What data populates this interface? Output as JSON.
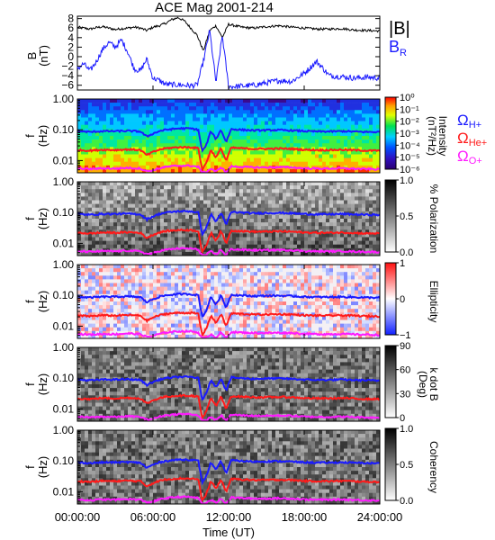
{
  "title": "ACE Mag 2001-214",
  "xlabel": "Time (UT)",
  "x_ticks": [
    "00:00:00",
    "06:00:00",
    "12:00:00",
    "18:00:00",
    "24:00:00"
  ],
  "colors": {
    "blue": "#1a1aff",
    "red": "#ff1a1a",
    "magenta": "#ff1aff",
    "black": "#000000"
  },
  "chart_data": [
    {
      "type": "line",
      "panel": "B",
      "ylabel": "B",
      "yunit": "(nT)",
      "ylim": [
        -7,
        8.5
      ],
      "y_ticks": [
        "8",
        "6",
        "4",
        "2",
        "0",
        "−2",
        "−4",
        "−6"
      ],
      "x_unit": "hours UT",
      "xlim": [
        0,
        24
      ],
      "series": [
        {
          "name": "|B|",
          "color": "#000000",
          "x": [
            0,
            0.5,
            1,
            1.5,
            2,
            2.5,
            3,
            3.5,
            4,
            4.5,
            5,
            5.5,
            6,
            6.5,
            7,
            7.5,
            8,
            8.5,
            9,
            9.5,
            10,
            10.5,
            11,
            11.5,
            12,
            13,
            14,
            15,
            16,
            17,
            18,
            19,
            20,
            21,
            22,
            23,
            24
          ],
          "values": [
            6.2,
            6.0,
            5.8,
            6.1,
            6.3,
            6.0,
            5.7,
            5.9,
            6.0,
            6.2,
            6.0,
            5.5,
            6.2,
            6.5,
            7.0,
            7.8,
            8.2,
            7.5,
            6.0,
            4.5,
            1.2,
            5.5,
            6.5,
            4.0,
            6.8,
            6.2,
            6.0,
            6.3,
            6.5,
            6.2,
            6.0,
            5.8,
            5.8,
            5.9,
            5.6,
            5.5,
            5.4
          ]
        },
        {
          "name": "B_R",
          "color": "#1a1aff",
          "x": [
            0,
            0.5,
            1,
            1.5,
            2,
            2.5,
            3,
            3.5,
            4,
            4.5,
            5,
            5.5,
            6,
            6.5,
            7,
            7.5,
            8,
            8.5,
            9,
            9.5,
            10,
            10.5,
            11,
            11.5,
            12,
            13,
            14,
            15,
            16,
            17,
            18,
            19,
            20,
            21,
            22,
            23,
            24
          ],
          "values": [
            -2.5,
            -1.5,
            -3.0,
            -1.0,
            1.5,
            3.0,
            2.0,
            3.5,
            1.0,
            -2.5,
            -3.0,
            -0.5,
            -4.5,
            -5.0,
            -5.8,
            -5.9,
            -5.9,
            -6.0,
            -6.1,
            -6.0,
            -1.0,
            5.5,
            -5.5,
            4.5,
            -6.3,
            -6.2,
            -6.0,
            -5.5,
            -5.0,
            -5.2,
            -3.5,
            -1.0,
            -4.0,
            -4.2,
            -4.5,
            -4.3,
            -4.5
          ]
        }
      ],
      "legend": [
        "|B|",
        "B_R"
      ]
    },
    {
      "type": "heatmap",
      "panel": "power spectrogram",
      "ylabel": "f",
      "yunit": "(Hz)",
      "y_scale": "log",
      "ylim": [
        0.004,
        1.0
      ],
      "y_ticks": [
        "1.00",
        "0.10",
        "0.01"
      ],
      "colorbar": {
        "label": "Intensity",
        "unit": "(nT²/Hz)",
        "ticks": [
          "10⁰",
          "10⁻¹",
          "10⁻²",
          "10⁻³",
          "10⁻⁴",
          "10⁻⁵",
          "10⁻⁶"
        ],
        "range": [
          1e-06,
          1
        ],
        "scale": "log"
      }
    },
    {
      "type": "heatmap",
      "panel": "polarization",
      "ylabel": "f",
      "yunit": "(Hz)",
      "y_scale": "log",
      "ylim": [
        0.004,
        1.0
      ],
      "y_ticks": [
        "1.00",
        "0.10",
        "0.01"
      ],
      "colorbar": {
        "label": "% Polarization",
        "ticks": [
          "1.0",
          "0.5",
          "0.0"
        ],
        "range": [
          0,
          1
        ]
      }
    },
    {
      "type": "heatmap",
      "panel": "ellipticity",
      "ylabel": "f",
      "yunit": "(Hz)",
      "y_scale": "log",
      "ylim": [
        0.004,
        1.0
      ],
      "y_ticks": [
        "1.00",
        "0.10",
        "0.01"
      ],
      "colorbar": {
        "label": "Ellipticity",
        "ticks": [
          "1",
          "0",
          "−1"
        ],
        "range": [
          -1,
          1
        ]
      }
    },
    {
      "type": "heatmap",
      "panel": "k dot B",
      "ylabel": "f",
      "yunit": "(Hz)",
      "y_scale": "log",
      "ylim": [
        0.004,
        1.0
      ],
      "y_ticks": [
        "1.00",
        "0.10",
        "0.01"
      ],
      "colorbar": {
        "label": "k dot B",
        "unit": "(Deg)",
        "ticks": [
          "90",
          "60",
          "30",
          "0"
        ],
        "range": [
          0,
          90
        ]
      }
    },
    {
      "type": "heatmap",
      "panel": "coherency",
      "ylabel": "f",
      "yunit": "(Hz)",
      "y_scale": "log",
      "ylim": [
        0.004,
        1.0
      ],
      "y_ticks": [
        "1.00",
        "0.10",
        "0.01"
      ],
      "colorbar": {
        "label": "Coherency",
        "ticks": [
          "1.0",
          "0.5",
          "0.0"
        ],
        "range": [
          0,
          1
        ]
      }
    }
  ],
  "gyrofrequency_legend": [
    {
      "label": "Ω",
      "sub": "H+",
      "color": "#1a1aff"
    },
    {
      "label": "Ω",
      "sub": "He+",
      "color": "#ff1a1a"
    },
    {
      "label": "Ω",
      "sub": "O+",
      "color": "#ff1aff"
    }
  ],
  "gyrofrequency_lines_hz": {
    "x": [
      0,
      1,
      2,
      3,
      4,
      5,
      5.5,
      6,
      6.5,
      7,
      8,
      9,
      9.6,
      9.9,
      10.2,
      10.6,
      11,
      11.4,
      11.8,
      12.2,
      13,
      14,
      15,
      16,
      17,
      18,
      19,
      20,
      21,
      22,
      23,
      24
    ],
    "H+": [
      0.09,
      0.085,
      0.09,
      0.09,
      0.092,
      0.088,
      0.06,
      0.075,
      0.09,
      0.1,
      0.11,
      0.11,
      0.1,
      0.02,
      0.03,
      0.09,
      0.05,
      0.1,
      0.04,
      0.105,
      0.1,
      0.095,
      0.097,
      0.098,
      0.095,
      0.09,
      0.088,
      0.088,
      0.09,
      0.087,
      0.085,
      0.084
    ],
    "He+": [
      0.022,
      0.021,
      0.0225,
      0.022,
      0.023,
      0.022,
      0.015,
      0.019,
      0.0225,
      0.025,
      0.027,
      0.027,
      0.025,
      0.005,
      0.008,
      0.022,
      0.0125,
      0.025,
      0.01,
      0.026,
      0.025,
      0.024,
      0.024,
      0.0245,
      0.024,
      0.0225,
      0.022,
      0.022,
      0.0225,
      0.0218,
      0.021,
      0.021
    ],
    "O+": [
      0.0056,
      0.0053,
      0.0056,
      0.0055,
      0.0058,
      0.0055,
      0.0045,
      0.0048,
      0.0056,
      0.0062,
      0.0068,
      0.0068,
      0.0062,
      0.0041,
      0.0042,
      0.0055,
      0.0043,
      0.0062,
      0.0041,
      0.0065,
      0.0062,
      0.006,
      0.006,
      0.0061,
      0.006,
      0.0056,
      0.0055,
      0.0055,
      0.0056,
      0.0054,
      0.0053,
      0.0052
    ]
  }
}
